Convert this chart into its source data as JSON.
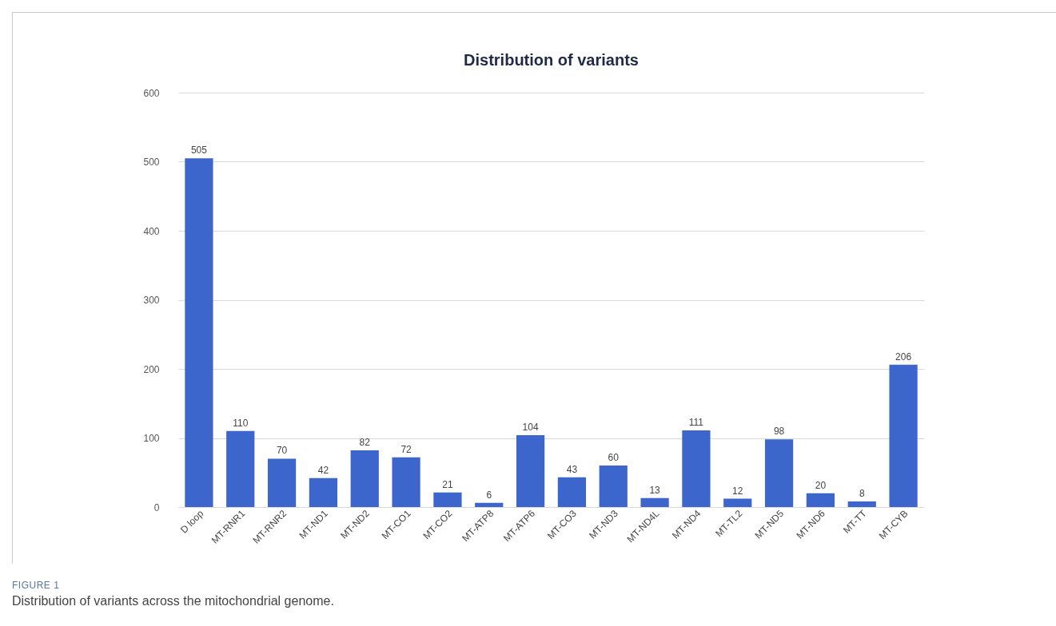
{
  "chart_data": {
    "type": "bar",
    "title": "Distribution of variants",
    "categories": [
      "D loop",
      "MT-RNR1",
      "MT-RNR2",
      "MT-ND1",
      "MT-ND2",
      "MT-CO1",
      "MT-CO2",
      "MT-ATP8",
      "MT-ATP6",
      "MT-CO3",
      "MT-ND3",
      "MT-ND4L",
      "MT-ND4",
      "MT-TL2",
      "MT-ND5",
      "MT-ND6",
      "MT-TT",
      "MT-CYB"
    ],
    "values": [
      505,
      110,
      70,
      42,
      82,
      72,
      21,
      6,
      104,
      43,
      60,
      13,
      111,
      12,
      98,
      20,
      8,
      206
    ],
    "color": "#3d66cc",
    "ylim": [
      0,
      600
    ],
    "yticks": [
      0,
      100,
      200,
      300,
      400,
      500,
      600
    ],
    "grid": "y",
    "data_labels": true,
    "annotations": [
      "FIGURE 1",
      "Distribution of variants across the mitochondrial genome."
    ]
  }
}
